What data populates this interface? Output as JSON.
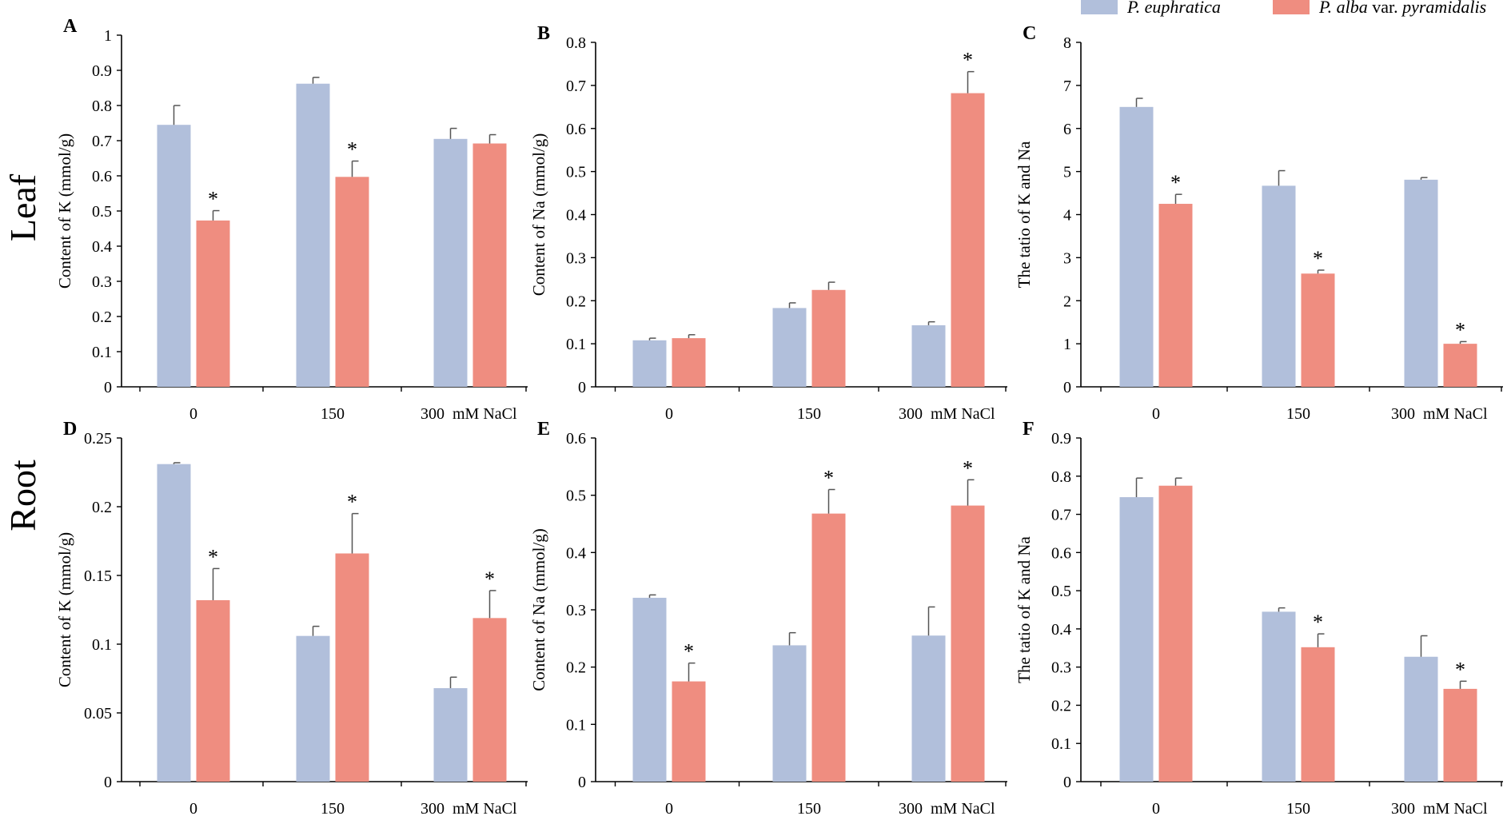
{
  "figure": {
    "row_labels": [
      "Leaf",
      "Root"
    ],
    "legend": [
      {
        "italic": "P. euphratica",
        "rest": "",
        "color": "#b1bfdb"
      },
      {
        "italic": "P. alba",
        "rest": " var. ",
        "italic2": "pyramidalis",
        "color": "#ef8d80"
      }
    ]
  },
  "chart_data": [
    {
      "type": "bar",
      "panel": "A",
      "row": "Leaf",
      "ylabel": "Content of K (mmol/g)",
      "xlabel": "",
      "ylim": [
        0,
        1
      ],
      "ytick_step": 0.1,
      "yticks": [
        "0",
        "0.1",
        "0.2",
        "0.3",
        "0.4",
        "0.5",
        "0.6",
        "0.7",
        "0.8",
        "0.9",
        "1"
      ],
      "categories": [
        "0",
        "150",
        "300  mM NaCl"
      ],
      "series": [
        {
          "name": "P. euphratica",
          "values": [
            0.745,
            0.862,
            0.705
          ],
          "errors": [
            0.055,
            0.018,
            0.03
          ],
          "significant": [
            false,
            false,
            false
          ]
        },
        {
          "name": "P. alba var. pyramidalis",
          "values": [
            0.473,
            0.597,
            0.692
          ],
          "errors": [
            0.028,
            0.045,
            0.025
          ],
          "significant": [
            true,
            true,
            false
          ]
        }
      ]
    },
    {
      "type": "bar",
      "panel": "B",
      "row": "Leaf",
      "ylabel": "Content of Na (mmol/g)",
      "xlabel": "",
      "ylim": [
        0,
        0.8
      ],
      "ytick_step": 0.1,
      "yticks": [
        "0",
        "0.1",
        "0.2",
        "0.3",
        "0.4",
        "0.5",
        "0.6",
        "0.7",
        "0.8"
      ],
      "categories": [
        "0",
        "150",
        "300  mM NaCl"
      ],
      "series": [
        {
          "name": "P. euphratica",
          "values": [
            0.108,
            0.183,
            0.143
          ],
          "errors": [
            0.005,
            0.012,
            0.008
          ],
          "significant": [
            false,
            false,
            false
          ]
        },
        {
          "name": "P. alba var. pyramidalis",
          "values": [
            0.113,
            0.225,
            0.682
          ],
          "errors": [
            0.008,
            0.018,
            0.05
          ],
          "significant": [
            false,
            false,
            true
          ]
        }
      ]
    },
    {
      "type": "bar",
      "panel": "C",
      "row": "Leaf",
      "ylabel": "The tatio of K and Na",
      "xlabel": "",
      "ylim": [
        0,
        8
      ],
      "ytick_step": 1,
      "yticks": [
        "0",
        "1",
        "2",
        "3",
        "4",
        "5",
        "6",
        "7",
        "8"
      ],
      "categories": [
        "0",
        "150",
        "300  mM NaCl"
      ],
      "series": [
        {
          "name": "P. euphratica",
          "values": [
            6.5,
            4.67,
            4.81
          ],
          "errors": [
            0.2,
            0.35,
            0.05
          ],
          "significant": [
            false,
            false,
            false
          ]
        },
        {
          "name": "P. alba var. pyramidalis",
          "values": [
            4.25,
            2.63,
            1.0
          ],
          "errors": [
            0.22,
            0.08,
            0.05
          ],
          "significant": [
            true,
            true,
            true
          ]
        }
      ]
    },
    {
      "type": "bar",
      "panel": "D",
      "row": "Root",
      "ylabel": "Content of K (mmol/g)",
      "xlabel": "",
      "ylim": [
        0,
        0.25
      ],
      "ytick_step": 0.05,
      "yticks": [
        "0",
        "0.05",
        "0.1",
        "0.15",
        "0.2",
        "0.25"
      ],
      "categories": [
        "0",
        "150",
        "300  mM NaCl"
      ],
      "series": [
        {
          "name": "P. euphratica",
          "values": [
            0.231,
            0.106,
            0.068
          ],
          "errors": [
            0.001,
            0.007,
            0.008
          ],
          "significant": [
            false,
            false,
            false
          ]
        },
        {
          "name": "P. alba var. pyramidalis",
          "values": [
            0.132,
            0.166,
            0.119
          ],
          "errors": [
            0.023,
            0.029,
            0.02
          ],
          "significant": [
            true,
            true,
            true
          ]
        }
      ]
    },
    {
      "type": "bar",
      "panel": "E",
      "row": "Root",
      "ylabel": "Content of Na (mmol/g)",
      "xlabel": "",
      "ylim": [
        0,
        0.6
      ],
      "ytick_step": 0.1,
      "yticks": [
        "0",
        "0.1",
        "0.2",
        "0.3",
        "0.4",
        "0.5",
        "0.6"
      ],
      "categories": [
        "0",
        "150",
        "300  mM NaCl"
      ],
      "series": [
        {
          "name": "P. euphratica",
          "values": [
            0.321,
            0.238,
            0.255
          ],
          "errors": [
            0.005,
            0.022,
            0.05
          ],
          "significant": [
            false,
            false,
            false
          ]
        },
        {
          "name": "P. alba var. pyramidalis",
          "values": [
            0.175,
            0.468,
            0.482
          ],
          "errors": [
            0.032,
            0.042,
            0.045
          ],
          "significant": [
            true,
            true,
            true
          ]
        }
      ]
    },
    {
      "type": "bar",
      "panel": "F",
      "row": "Root",
      "ylabel": "The tatio of K and Na",
      "xlabel": "",
      "ylim": [
        0,
        0.9
      ],
      "ytick_step": 0.1,
      "yticks": [
        "0",
        "0.1",
        "0.2",
        "0.3",
        "0.4",
        "0.5",
        "0.6",
        "0.7",
        "0.8",
        "0.9"
      ],
      "categories": [
        "0",
        "150",
        "300  mM NaCl"
      ],
      "series": [
        {
          "name": "P. euphratica",
          "values": [
            0.745,
            0.445,
            0.327
          ],
          "errors": [
            0.05,
            0.01,
            0.055
          ],
          "significant": [
            false,
            false,
            false
          ]
        },
        {
          "name": "P. alba var. pyramidalis",
          "values": [
            0.775,
            0.352,
            0.243
          ],
          "errors": [
            0.02,
            0.035,
            0.02
          ],
          "significant": [
            false,
            true,
            true
          ]
        }
      ]
    }
  ]
}
